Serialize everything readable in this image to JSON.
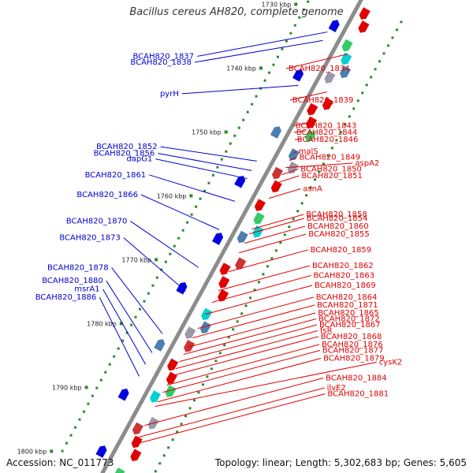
{
  "title": "Bacillus cereus AH820, complete genome",
  "footer": {
    "accession": "Accession: NC_011773",
    "topology": "Topology: linear; Length: 5,302,683 bp; Genes: 5,605"
  },
  "colors": {
    "backbone": "#8c8c8c",
    "left_label": "#0000cc",
    "right_label": "#e00000",
    "forward_gene": "#e00000",
    "reverse_gene": "#0000e0",
    "tick": "#2a8a2a",
    "kbp_label": "#222222"
  },
  "kbp_marks": [
    {
      "label": "1730 kbp",
      "t": 0.065
    },
    {
      "label": "1740 kbp",
      "t": 0.2
    },
    {
      "label": "1750 kbp",
      "t": 0.335
    },
    {
      "label": "1760 kbp",
      "t": 0.47
    },
    {
      "label": "1770 kbp",
      "t": 0.605
    },
    {
      "label": "1780 kbp",
      "t": 0.74
    },
    {
      "label": "1790 kbp",
      "t": 0.875
    },
    {
      "label": "1800 kbp",
      "t": 1.01
    }
  ],
  "left_labels": [
    {
      "text": "BCAH820_1837",
      "t": 0.082
    },
    {
      "text": "BCAH820_1838",
      "t": 0.1
    },
    {
      "text": "pyrH",
      "t": 0.195
    },
    {
      "text": "BCAH820_1852",
      "t": 0.355
    },
    {
      "text": "BCAH820_1856",
      "t": 0.375
    },
    {
      "text": "dapG1",
      "t": 0.392
    },
    {
      "text": "BCAH820_1861",
      "t": 0.44
    },
    {
      "text": "BCAH820_1866",
      "t": 0.5
    },
    {
      "text": "BCAH820_1870",
      "t": 0.58
    },
    {
      "text": "BCAH820_1873",
      "t": 0.63
    },
    {
      "text": "BCAH820_1878",
      "t": 0.72
    },
    {
      "text": "BCAH820_1880",
      "t": 0.76
    },
    {
      "text": "msrA1",
      "t": 0.785
    },
    {
      "text": "BCAH820_1886",
      "t": 0.81
    }
  ],
  "right_labels": [
    {
      "text": "BCAH820_1834",
      "t": 0.1
    },
    {
      "text": "BCAH820_1839",
      "t": 0.18
    },
    {
      "text": "BCAH820_1843",
      "t": 0.245
    },
    {
      "text": "BCAH820_1844",
      "t": 0.262
    },
    {
      "text": "BCAH820_1846",
      "t": 0.28
    },
    {
      "text": "malS",
      "t": 0.31
    },
    {
      "text": "BCAH820_1849",
      "t": 0.325
    },
    {
      "text": "aspA2",
      "t": 0.34
    },
    {
      "text": "BCAH820_1850",
      "t": 0.355
    },
    {
      "text": "BCAH820_1851",
      "t": 0.372
    },
    {
      "text": "asnA",
      "t": 0.405
    },
    {
      "text": "BCAH820_1858",
      "t": 0.47
    },
    {
      "text": "BCAH820_1854",
      "t": 0.48
    },
    {
      "text": "BCAH820_1860",
      "t": 0.5
    },
    {
      "text": "BCAH820_1855",
      "t": 0.52
    },
    {
      "text": "BCAH820_1859",
      "t": 0.56
    },
    {
      "text": "BCAH820_1862",
      "t": 0.6
    },
    {
      "text": "BCAH820_1863",
      "t": 0.625
    },
    {
      "text": "BCAH820_1869",
      "t": 0.65
    },
    {
      "text": "BCAH820_1864",
      "t": 0.68
    },
    {
      "text": "BCAH820_1871",
      "t": 0.7
    },
    {
      "text": "BCAH820_1865",
      "t": 0.72
    },
    {
      "text": "BCAH820_1872",
      "t": 0.735
    },
    {
      "text": "BCAH820_1867",
      "t": 0.75
    },
    {
      "text": "fsR",
      "t": 0.765
    },
    {
      "text": "BCAH820_1868",
      "t": 0.78
    },
    {
      "text": "BCAH820_1876",
      "t": 0.8
    },
    {
      "text": "BCAH820_1877",
      "t": 0.815
    },
    {
      "text": "BCAH820_1879",
      "t": 0.835
    },
    {
      "text": "cysK2",
      "t": 0.845
    },
    {
      "text": "BCAH820_1884",
      "t": 0.885
    },
    {
      "text": "ilvE2",
      "t": 0.91
    },
    {
      "text": "BCAH820_1881",
      "t": 0.925
    }
  ]
}
